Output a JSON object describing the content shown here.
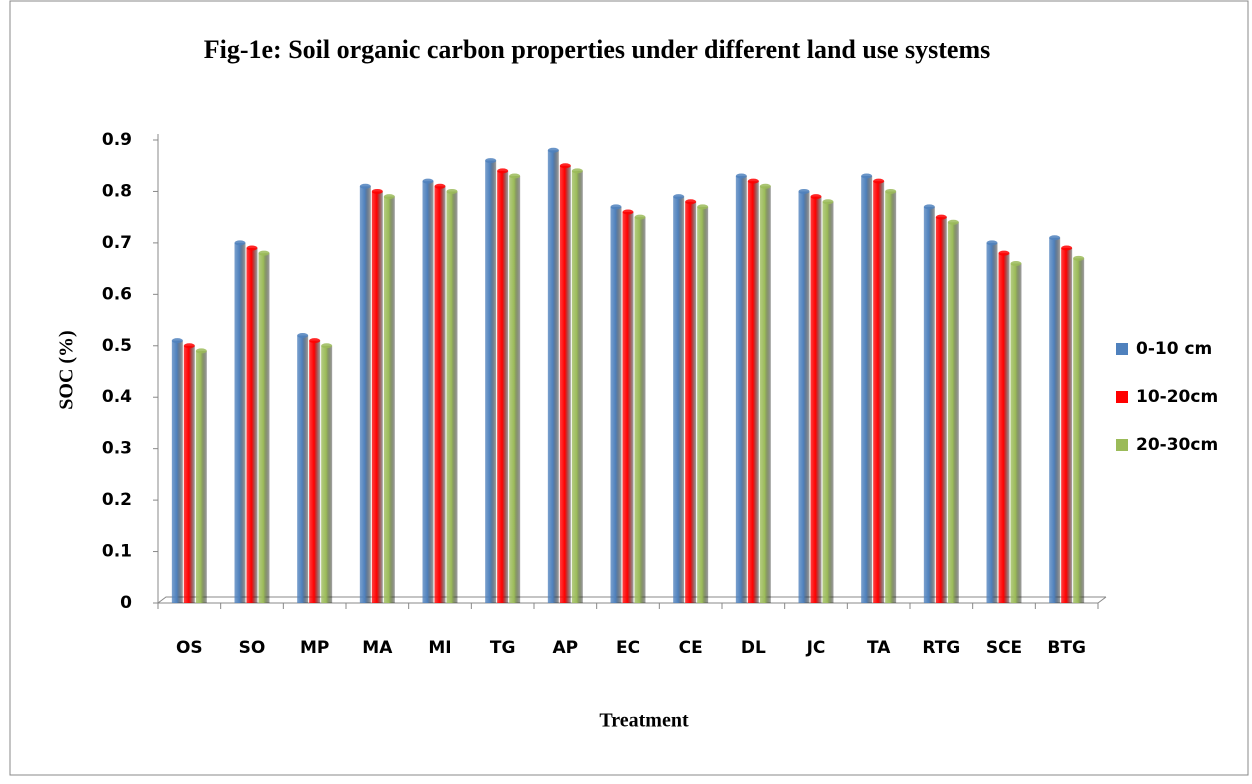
{
  "chart_data": {
    "type": "bar",
    "title": "Fig-1e:  Soil organic carbon properties under different land use systems",
    "y_label": "SOC (%)",
    "x_label": "Treatment",
    "categories": [
      "OS",
      "SO",
      "MP",
      "MA",
      "MI",
      "TG",
      "AP",
      "EC",
      "CE",
      "DL",
      "JC",
      "TA",
      "RTG",
      "SCE",
      "BTG"
    ],
    "series": [
      {
        "name": "0-10 cm",
        "color": "#4f81bd",
        "values": [
          0.51,
          0.7,
          0.52,
          0.81,
          0.82,
          0.86,
          0.88,
          0.77,
          0.79,
          0.83,
          0.8,
          0.83,
          0.77,
          0.7,
          0.71
        ]
      },
      {
        "name": "10-20cm",
        "color": "#ff0000",
        "values": [
          0.5,
          0.69,
          0.51,
          0.8,
          0.81,
          0.84,
          0.85,
          0.76,
          0.78,
          0.82,
          0.79,
          0.82,
          0.75,
          0.68,
          0.69
        ]
      },
      {
        "name": "20-30cm",
        "color": "#9bbb59",
        "values": [
          0.49,
          0.68,
          0.5,
          0.79,
          0.8,
          0.83,
          0.84,
          0.75,
          0.77,
          0.81,
          0.78,
          0.8,
          0.74,
          0.66,
          0.67
        ]
      }
    ],
    "ylim": [
      0,
      0.9
    ],
    "yticks": [
      0,
      0.1,
      0.2,
      0.3,
      0.4,
      0.5,
      0.6,
      0.7,
      0.8,
      0.9
    ],
    "grid": false,
    "legend": "right"
  }
}
